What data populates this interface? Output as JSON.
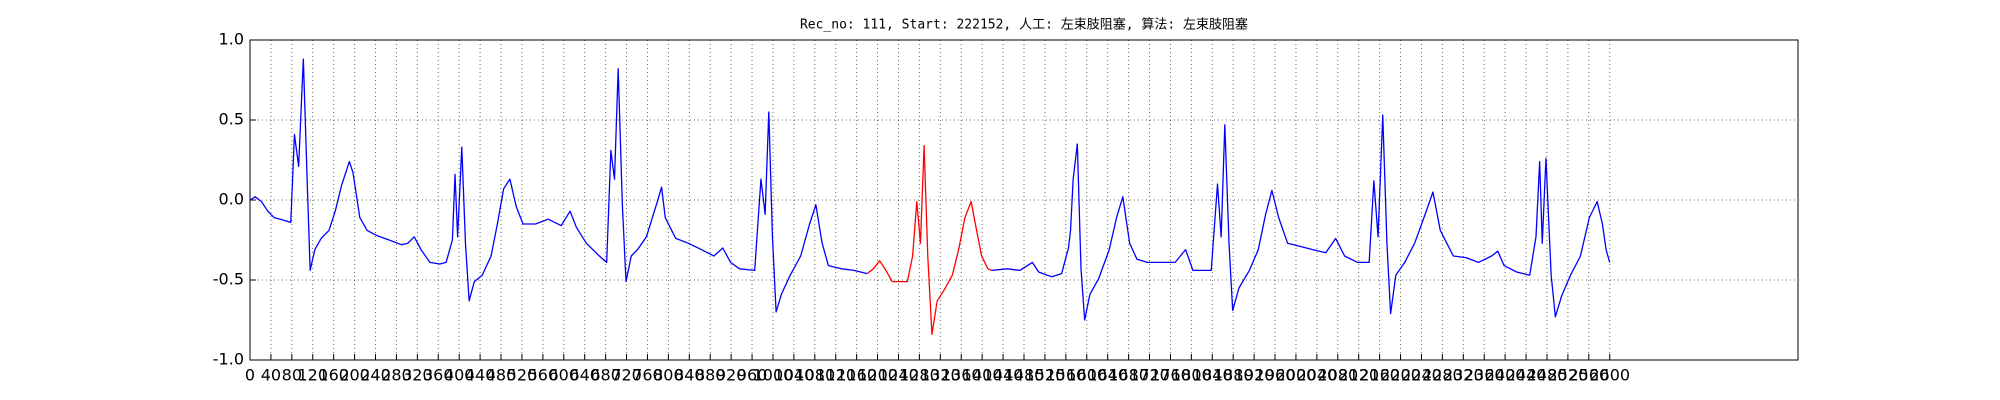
{
  "chart_data": {
    "type": "line",
    "title": "Rec_no: 111, Start: 222152, 人工: 左束肢阻塞, 算法: 左束肢阻塞",
    "xlim": [
      0,
      2960
    ],
    "ylim": [
      -1.0,
      1.0
    ],
    "xticks": [
      0,
      40,
      80,
      120,
      160,
      200,
      240,
      280,
      320,
      360,
      400,
      440,
      480,
      520,
      560,
      600,
      640,
      680,
      720,
      760,
      800,
      840,
      880,
      920,
      960,
      1000,
      1040,
      1080,
      1120,
      1160,
      1200,
      1240,
      1280,
      1320,
      1360,
      1400,
      1440,
      1480,
      1520,
      1560,
      1600,
      1640,
      1680,
      1720,
      1760,
      1800,
      1840,
      1880,
      1920,
      1960,
      2000,
      2040,
      2080,
      2120,
      2160,
      2200,
      2240,
      2280,
      2320,
      2360,
      2400,
      2440,
      2480,
      2520,
      2560,
      2600
    ],
    "yticks": [
      {
        "value": -1.0,
        "label": "-1.0"
      },
      {
        "value": -0.5,
        "label": "-0.5"
      },
      {
        "value": 0.0,
        "label": "0.0"
      },
      {
        "value": 0.5,
        "label": "0.5"
      },
      {
        "value": 1.0,
        "label": "1.0"
      }
    ],
    "grid": true,
    "series": [
      {
        "color": "#0000ff",
        "x": [
          0,
          10,
          22,
          34,
          46,
          58,
          78,
          85,
          93,
          102,
          110,
          115,
          124,
          136,
          151,
          163,
          175,
          190,
          197,
          210,
          224,
          241,
          266,
          290,
          302,
          314,
          327,
          344,
          363,
          375,
          387,
          392,
          397,
          405,
          412,
          419,
          429,
          444,
          461,
          473,
          485,
          497,
          509,
          522,
          546,
          570,
          595,
          612,
          624,
          643,
          668,
          682,
          690,
          697,
          704,
          712,
          719,
          729,
          741,
          758,
          777,
          787,
          794,
          814,
          838,
          863,
          887,
          904,
          919,
          936,
          965,
          977,
          985,
          992,
          999,
          1006,
          1016,
          1033,
          1053,
          1070,
          1082,
          1094,
          1106,
          1131,
          1155,
          1180
        ],
        "values": [
          0.0,
          0.02,
          -0.01,
          -0.07,
          -0.11,
          -0.12,
          -0.14,
          0.41,
          0.21,
          0.88,
          0.05,
          -0.44,
          -0.31,
          -0.24,
          -0.19,
          -0.07,
          0.09,
          0.24,
          0.17,
          -0.11,
          -0.19,
          -0.22,
          -0.25,
          -0.28,
          -0.27,
          -0.23,
          -0.31,
          -0.39,
          -0.4,
          -0.39,
          -0.25,
          0.16,
          -0.23,
          0.33,
          -0.27,
          -0.63,
          -0.51,
          -0.47,
          -0.35,
          -0.15,
          0.07,
          0.13,
          -0.04,
          -0.15,
          -0.15,
          -0.12,
          -0.16,
          -0.07,
          -0.17,
          -0.27,
          -0.35,
          -0.39,
          0.31,
          0.13,
          0.82,
          -0.03,
          -0.51,
          -0.35,
          -0.31,
          -0.23,
          -0.03,
          0.08,
          -0.11,
          -0.24,
          -0.27,
          -0.31,
          -0.35,
          -0.3,
          -0.39,
          -0.43,
          -0.44,
          0.13,
          -0.09,
          0.55,
          -0.23,
          -0.7,
          -0.59,
          -0.47,
          -0.35,
          -0.15,
          -0.03,
          -0.27,
          -0.41,
          -0.43,
          -0.44,
          -0.46
        ]
      },
      {
        "color": "#ff0000",
        "x": [
          1180,
          1192,
          1204,
          1216,
          1228,
          1240,
          1257,
          1267,
          1275,
          1282,
          1289,
          1296,
          1304,
          1314,
          1326,
          1343,
          1355,
          1367,
          1379,
          1387,
          1399,
          1411,
          1418
        ],
        "values": [
          -0.46,
          -0.43,
          -0.38,
          -0.44,
          -0.51,
          -0.51,
          -0.51,
          -0.35,
          -0.01,
          -0.27,
          0.34,
          -0.35,
          -0.84,
          -0.63,
          -0.57,
          -0.47,
          -0.31,
          -0.11,
          -0.01,
          -0.15,
          -0.35,
          -0.43,
          -0.44
        ]
      },
      {
        "color": "#0000ff",
        "x": [
          1418,
          1448,
          1472,
          1496,
          1508,
          1533,
          1552,
          1565,
          1569,
          1574,
          1582,
          1589,
          1596,
          1606,
          1623,
          1643,
          1657,
          1669,
          1682,
          1696,
          1716,
          1740,
          1769,
          1789,
          1803,
          1823,
          1838,
          1850,
          1857,
          1864,
          1872,
          1879,
          1891,
          1911,
          1928,
          1942,
          1954,
          1967,
          1984,
          2008,
          2032,
          2057,
          2076,
          2093,
          2118,
          2140,
          2149,
          2157,
          2166,
          2174,
          2181,
          2191,
          2208,
          2227,
          2247,
          2262,
          2276,
          2301,
          2325,
          2349,
          2374,
          2386,
          2398,
          2422,
          2447,
          2459,
          2466,
          2471,
          2478,
          2488,
          2496,
          2508,
          2525,
          2544,
          2561,
          2576,
          2586,
          2593,
          2600
        ],
        "values": [
          -0.44,
          -0.43,
          -0.44,
          -0.39,
          -0.45,
          -0.48,
          -0.46,
          -0.3,
          -0.19,
          0.13,
          0.35,
          -0.43,
          -0.75,
          -0.59,
          -0.49,
          -0.31,
          -0.11,
          0.02,
          -0.27,
          -0.37,
          -0.39,
          -0.39,
          -0.39,
          -0.31,
          -0.44,
          -0.44,
          -0.44,
          0.1,
          -0.23,
          0.47,
          -0.27,
          -0.69,
          -0.55,
          -0.44,
          -0.31,
          -0.09,
          0.06,
          -0.11,
          -0.27,
          -0.29,
          -0.31,
          -0.33,
          -0.24,
          -0.35,
          -0.39,
          -0.39,
          0.12,
          -0.23,
          0.53,
          -0.27,
          -0.71,
          -0.47,
          -0.39,
          -0.27,
          -0.09,
          0.05,
          -0.19,
          -0.35,
          -0.36,
          -0.39,
          -0.35,
          -0.32,
          -0.41,
          -0.45,
          -0.47,
          -0.23,
          0.24,
          -0.27,
          0.26,
          -0.47,
          -0.73,
          -0.6,
          -0.47,
          -0.35,
          -0.11,
          -0.01,
          -0.15,
          -0.31,
          -0.39
        ]
      }
    ]
  }
}
